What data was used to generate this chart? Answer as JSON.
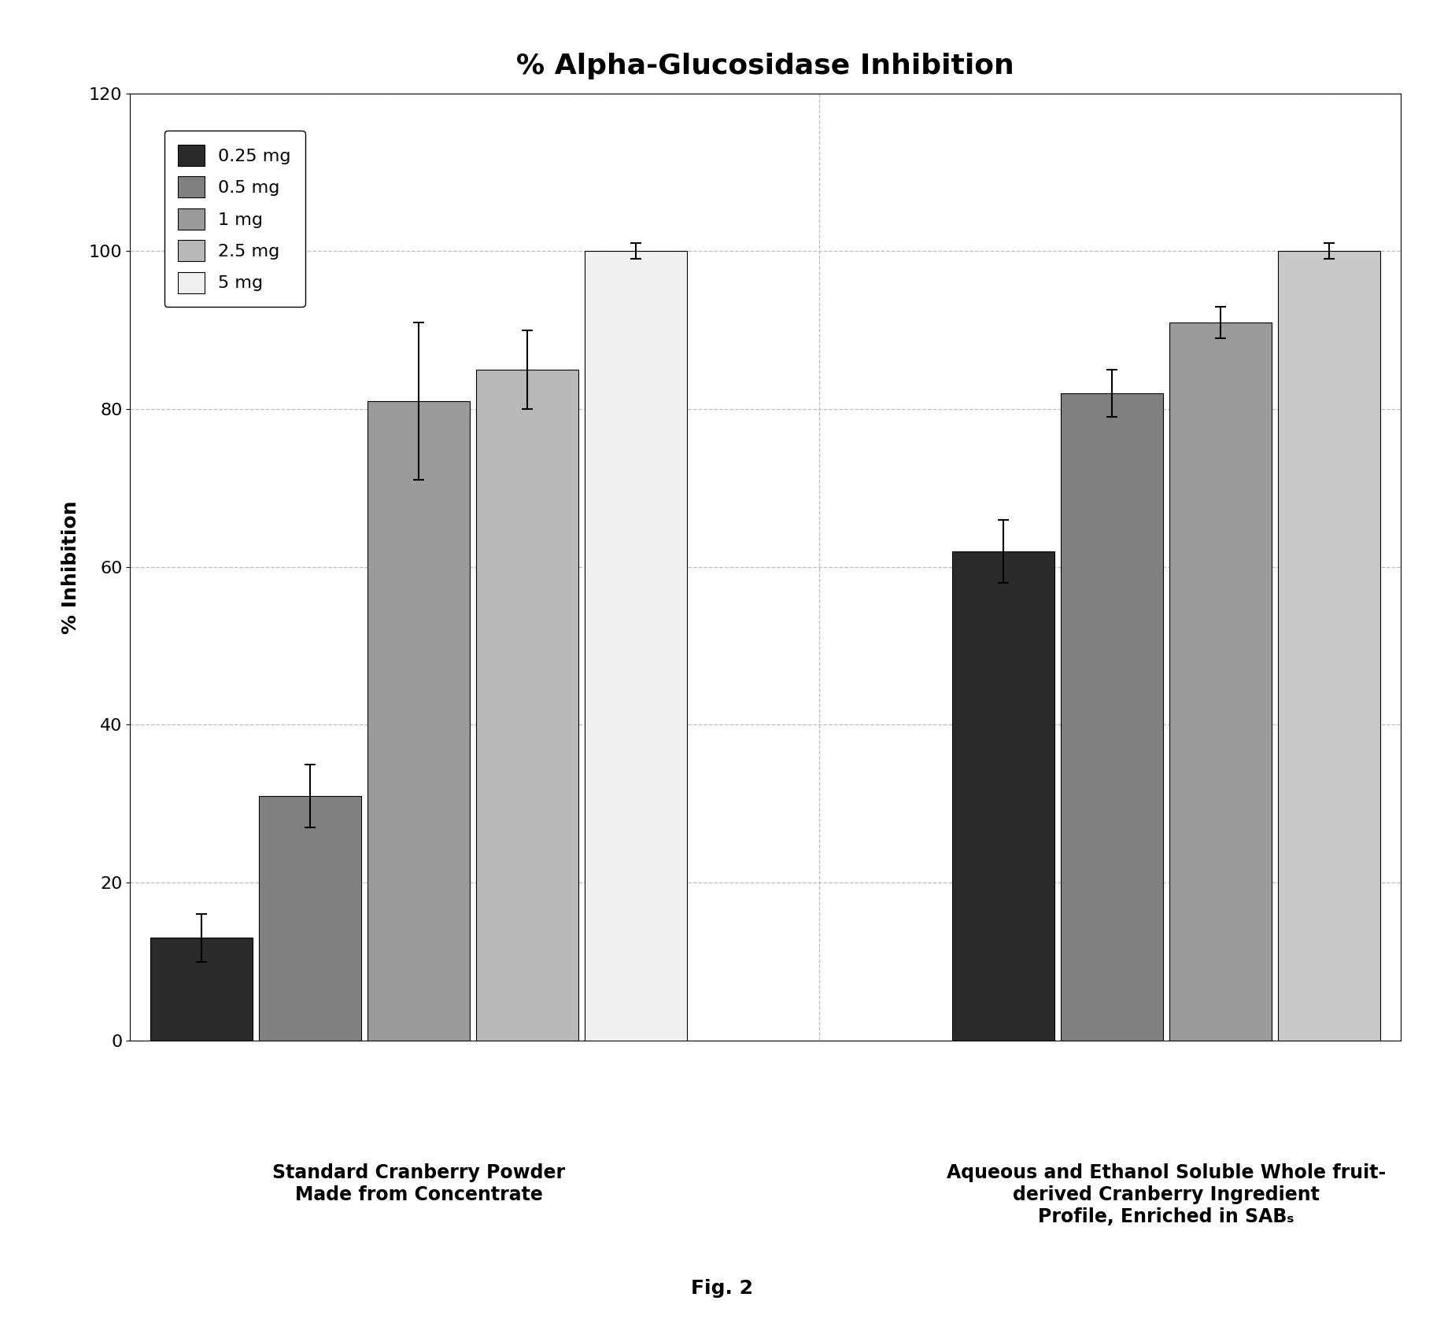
{
  "title": "% Alpha-Glucosidase Inhibition",
  "ylabel": "% Inhibition",
  "fig_label": "Fig. 2",
  "ylim": [
    0,
    120
  ],
  "yticks": [
    0,
    20,
    40,
    60,
    80,
    100,
    120
  ],
  "doses": [
    "0.25 mg",
    "0.5 mg",
    "1 mg",
    "2.5 mg",
    "5 mg"
  ],
  "group1_label": "Standard Cranberry Powder\nMade from Concentrate",
  "group2_label": "Aqueous and Ethanol Soluble Whole fruit-\nderived Cranberry Ingredient\nProfile, Enriched in SABₛ",
  "group1_values": [
    13,
    31,
    81,
    85,
    100
  ],
  "group1_errors": [
    3,
    4,
    10,
    5,
    1
  ],
  "group1_colors": [
    "#2b2b2b",
    "#808080",
    "#9a9a9a",
    "#b8b8b8",
    "#f0f0f0"
  ],
  "group2_values": [
    62,
    82,
    91,
    100
  ],
  "group2_errors": [
    4,
    3,
    2,
    1
  ],
  "group2_colors": [
    "#2b2b2b",
    "#808080",
    "#9a9a9a",
    "#c8c8c8"
  ],
  "legend_colors": [
    "#2b2b2b",
    "#808080",
    "#9a9a9a",
    "#b8b8b8",
    "#f0f0f0"
  ],
  "title_fontsize": 26,
  "axis_label_fontsize": 18,
  "tick_fontsize": 16,
  "legend_fontsize": 16,
  "group_label_fontsize": 17,
  "fig_label_fontsize": 18,
  "background_color": "#ffffff",
  "grid_color": "#bbbbbb"
}
